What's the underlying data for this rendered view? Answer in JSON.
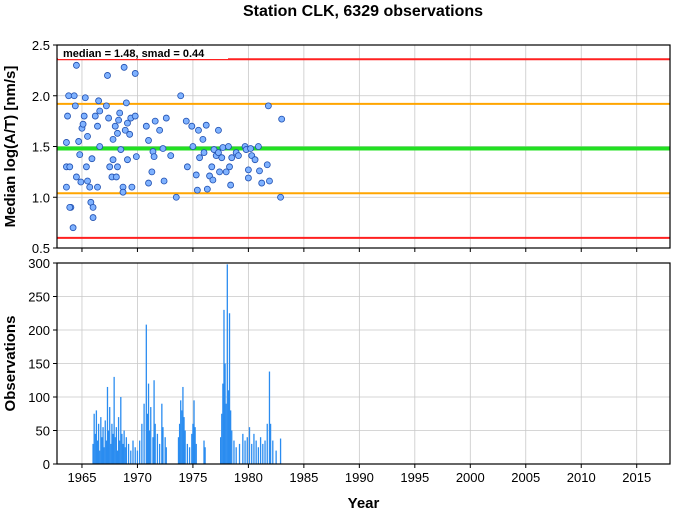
{
  "chart_data": [
    {
      "type": "scatter",
      "title": "Station CLK, 6329 observations",
      "ylabel": "Median log(A/T) [nm/s]",
      "annotation": "median = 1.48, smad = 0.44",
      "xlim": [
        1962.75,
        2018
      ],
      "xticks": [
        1965,
        1970,
        1975,
        1980,
        1985,
        1990,
        1995,
        2000,
        2005,
        2010,
        2015
      ],
      "ylim": [
        0.5,
        2.5
      ],
      "yticks": [
        0.5,
        {
          "value": 1,
          "label": "1.0"
        },
        1.5,
        {
          "value": 2,
          "label": "2.0"
        },
        2.5
      ],
      "grid": true,
      "color": "#7fb2ff",
      "edgecolor": "#1f4fb0",
      "hlines": [
        {
          "value": 2.36,
          "color": "#ff2020"
        },
        {
          "value": 1.92,
          "color": "#ffa500"
        },
        {
          "value": 1.48,
          "color": "#22e022"
        },
        {
          "value": 1.04,
          "color": "#ffa500"
        },
        {
          "value": 0.6,
          "color": "#ff2020"
        }
      ],
      "x": [
        1963.6,
        1963.6,
        1963.6,
        1963.8,
        1963.7,
        1963.9,
        1964.0,
        1963.9,
        1964.2,
        1964.3,
        1964.4,
        1964.5,
        1964.5,
        1964.7,
        1964.8,
        1964.9,
        1965.0,
        1965.1,
        1965.3,
        1965.2,
        1965.4,
        1965.5,
        1965.5,
        1965.7,
        1965.8,
        1966.0,
        1966.0,
        1965.9,
        1966.2,
        1966.4,
        1966.4,
        1966.5,
        1966.6,
        1966.6,
        1967.3,
        1967.2,
        1967.4,
        1967.5,
        1967.7,
        1967.8,
        1967.8,
        1968.0,
        1968.1,
        1968.2,
        1968.2,
        1968.3,
        1968.4,
        1968.5,
        1968.7,
        1968.7,
        1968.8,
        1968.9,
        1969.0,
        1969.1,
        1969.1,
        1969.3,
        1969.4,
        1969.5,
        1969.8,
        1969.8,
        1969.9,
        1970.8,
        1971.0,
        1971.0,
        1971.3,
        1971.4,
        1971.5,
        1971.6,
        1972.0,
        1972.3,
        1972.4,
        1972.6,
        1973.0,
        1973.5,
        1973.9,
        1974.4,
        1974.5,
        1974.9,
        1975.0,
        1975.3,
        1975.4,
        1975.5,
        1975.6,
        1975.9,
        1976.0,
        1976.2,
        1976.3,
        1976.5,
        1976.7,
        1976.8,
        1976.9,
        1977.1,
        1977.3,
        1977.3,
        1977.4,
        1977.6,
        1977.7,
        1978.0,
        1978.2,
        1978.3,
        1978.4,
        1978.5,
        1978.9,
        1979.1,
        1979.7,
        1979.8,
        1980.0,
        1980.0,
        1980.2,
        1980.3,
        1980.6,
        1980.9,
        1981.0,
        1981.2,
        1981.7,
        1981.8,
        1981.9,
        1982.9,
        1983.0
      ],
      "values": [
        1.54,
        1.3,
        1.1,
        2.0,
        1.8,
        1.3,
        0.9,
        0.9,
        0.7,
        2.0,
        1.9,
        1.2,
        2.3,
        1.55,
        1.42,
        1.15,
        1.68,
        1.72,
        1.98,
        1.8,
        1.3,
        1.6,
        1.16,
        1.1,
        0.95,
        0.8,
        0.9,
        1.38,
        1.8,
        1.7,
        1.1,
        1.95,
        1.85,
        1.5,
        2.2,
        1.9,
        1.78,
        1.3,
        1.2,
        1.37,
        1.57,
        1.7,
        1.2,
        1.3,
        1.63,
        1.76,
        1.83,
        1.47,
        1.1,
        1.05,
        2.28,
        1.66,
        1.93,
        1.73,
        1.37,
        1.62,
        1.78,
        1.1,
        2.22,
        1.8,
        1.4,
        1.7,
        1.56,
        1.14,
        1.25,
        1.45,
        1.4,
        1.75,
        1.66,
        1.48,
        1.16,
        1.78,
        1.41,
        1.0,
        2.0,
        1.75,
        1.3,
        1.7,
        1.5,
        1.22,
        1.07,
        1.66,
        1.39,
        1.57,
        1.44,
        1.71,
        1.08,
        1.21,
        1.3,
        1.17,
        1.47,
        1.41,
        1.44,
        1.66,
        1.25,
        1.39,
        1.49,
        1.25,
        1.5,
        1.3,
        1.12,
        1.39,
        1.44,
        1.41,
        1.5,
        1.47,
        1.27,
        1.19,
        1.48,
        1.41,
        1.37,
        1.5,
        1.26,
        1.14,
        1.32,
        1.9,
        1.16,
        1.0,
        1.77
      ]
    },
    {
      "type": "bar",
      "xlabel": "Year",
      "ylabel": "Observations",
      "xlim": [
        1962.75,
        2018
      ],
      "xticks": [
        1965,
        1970,
        1975,
        1980,
        1985,
        1990,
        1995,
        2000,
        2005,
        2010,
        2015
      ],
      "ylim": [
        0,
        300
      ],
      "yticks": [
        0,
        50,
        100,
        150,
        200,
        250,
        300
      ],
      "grid": true,
      "color": "#2a8cf0",
      "x": [
        1966.0,
        1966.1,
        1966.2,
        1966.3,
        1966.4,
        1966.5,
        1966.6,
        1966.7,
        1966.8,
        1966.9,
        1967.0,
        1967.1,
        1967.2,
        1967.3,
        1967.4,
        1967.5,
        1967.6,
        1967.7,
        1967.8,
        1967.9,
        1968.0,
        1968.1,
        1968.2,
        1968.3,
        1968.4,
        1968.5,
        1968.6,
        1968.7,
        1968.8,
        1968.9,
        1969.0,
        1969.2,
        1969.4,
        1969.6,
        1969.8,
        1970.0,
        1970.2,
        1970.4,
        1970.6,
        1970.8,
        1970.9,
        1971.0,
        1971.1,
        1971.2,
        1971.4,
        1971.5,
        1971.6,
        1971.8,
        1972.0,
        1972.2,
        1972.3,
        1972.5,
        1972.6,
        1973.7,
        1973.8,
        1973.9,
        1974.0,
        1974.1,
        1974.2,
        1974.3,
        1974.5,
        1974.7,
        1974.9,
        1975.0,
        1975.1,
        1975.2,
        1975.3,
        1976.0,
        1976.1,
        1977.5,
        1977.6,
        1977.7,
        1977.8,
        1977.9,
        1978.0,
        1978.1,
        1978.2,
        1978.3,
        1978.4,
        1978.5,
        1978.7,
        1978.9,
        1979.2,
        1979.5,
        1979.7,
        1979.9,
        1980.1,
        1980.3,
        1980.5,
        1980.7,
        1980.9,
        1981.1,
        1981.3,
        1981.5,
        1981.7,
        1981.9,
        1982.0,
        1982.2,
        1982.5,
        1982.9
      ],
      "values": [
        30,
        75,
        45,
        80,
        35,
        60,
        20,
        70,
        40,
        55,
        25,
        65,
        35,
        115,
        50,
        85,
        30,
        60,
        45,
        130,
        40,
        55,
        20,
        70,
        35,
        100,
        45,
        30,
        50,
        25,
        40,
        30,
        20,
        35,
        25,
        20,
        35,
        60,
        90,
        208,
        75,
        120,
        50,
        85,
        40,
        125,
        60,
        45,
        30,
        90,
        55,
        40,
        25,
        40,
        60,
        95,
        80,
        115,
        70,
        50,
        30,
        25,
        45,
        60,
        95,
        55,
        30,
        35,
        25,
        40,
        75,
        120,
        230,
        150,
        90,
        298,
        110,
        225,
        80,
        50,
        35,
        25,
        30,
        45,
        35,
        40,
        55,
        30,
        45,
        35,
        25,
        40,
        30,
        35,
        60,
        138,
        60,
        35,
        20,
        38
      ]
    }
  ]
}
